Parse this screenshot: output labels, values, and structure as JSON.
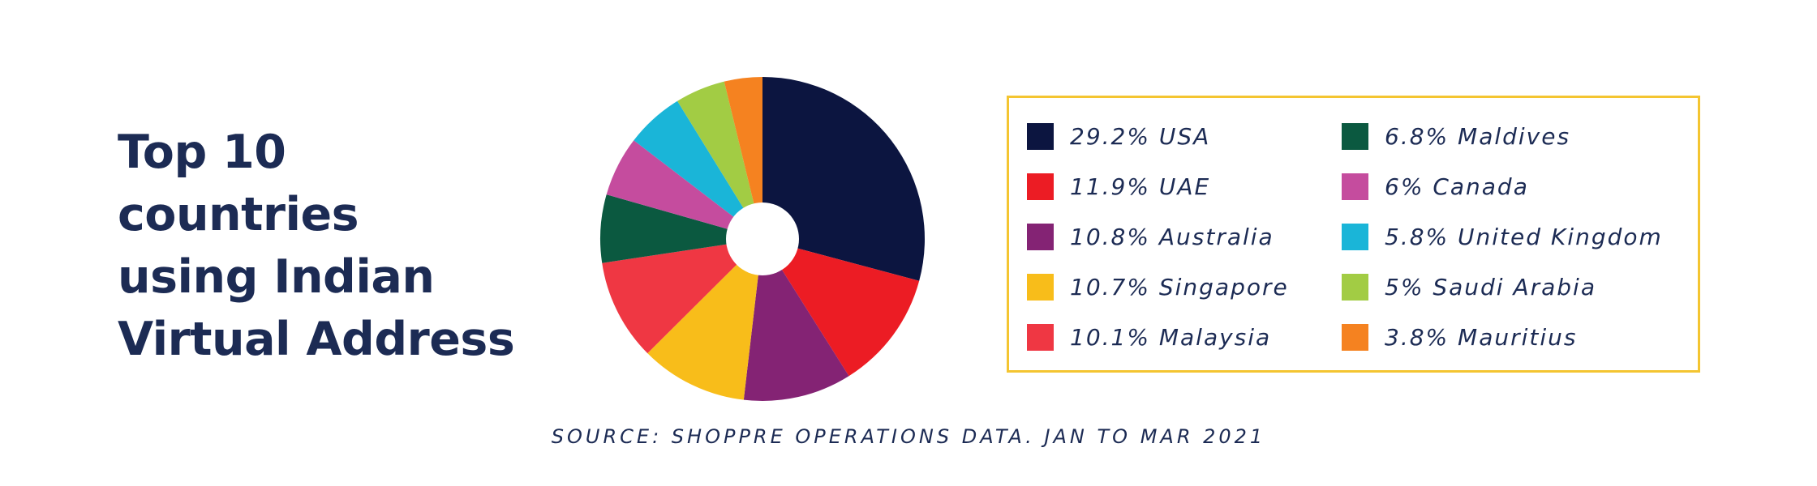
{
  "chart_data": {
    "type": "pie",
    "title_lines": [
      "Top 10",
      "countries",
      "using Indian",
      "Virtual Address"
    ],
    "slices": [
      {
        "label": "USA",
        "value": 29.2,
        "display": "29.2% USA",
        "color": "#0c1540"
      },
      {
        "label": "UAE",
        "value": 11.9,
        "display": "11.9% UAE",
        "color": "#ec1c24"
      },
      {
        "label": "Australia",
        "value": 10.8,
        "display": "10.8% Australia",
        "color": "#842374"
      },
      {
        "label": "Singapore",
        "value": 10.7,
        "display": "10.7% Singapore",
        "color": "#f8bd1a"
      },
      {
        "label": "Malaysia",
        "value": 10.1,
        "display": "10.1% Malaysia",
        "color": "#ef3743"
      },
      {
        "label": "Maldives",
        "value": 6.8,
        "display": "6.8% Maldives",
        "color": "#0b5940"
      },
      {
        "label": "Canada",
        "value": 6,
        "display": "6% Canada",
        "color": "#c54c9e"
      },
      {
        "label": "United Kingdom",
        "value": 5.8,
        "display": "5.8% United Kingdom",
        "color": "#1ab5d8"
      },
      {
        "label": "Saudi Arabia",
        "value": 5,
        "display": "5% Saudi Arabia",
        "color": "#a2cc44"
      },
      {
        "label": "Mauritius",
        "value": 3.8,
        "display": "3.8% Mauritius",
        "color": "#f58220"
      }
    ],
    "legend": {
      "columns": 2,
      "border_color": "#f4c531"
    },
    "source": "SOURCE: SHOPPRE OPERATIONS DATA. JAN TO MAR 2021"
  },
  "colors": {
    "text": "#1c2b54",
    "background": "#ffffff"
  }
}
